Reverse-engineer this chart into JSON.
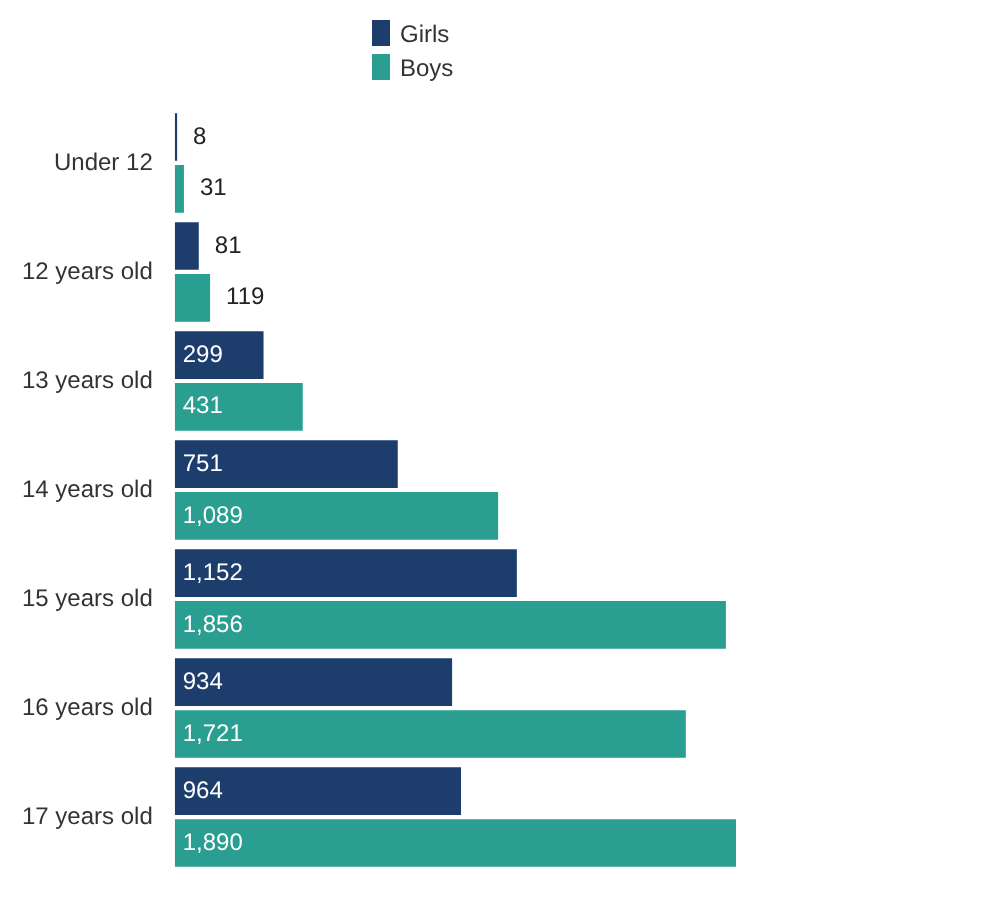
{
  "chart_data": {
    "type": "bar",
    "orientation": "horizontal",
    "categories": [
      "Under 12",
      "12 years old",
      "13 years old",
      "14 years old",
      "15 years old",
      "16 years old",
      "17 years old"
    ],
    "series": [
      {
        "name": "Girls",
        "color": "#1d3e6c",
        "values": [
          8,
          81,
          299,
          751,
          1152,
          934,
          964
        ],
        "value_labels": [
          "8",
          "81",
          "299",
          "751",
          "1,152",
          "934",
          "964"
        ]
      },
      {
        "name": "Boys",
        "color": "#2a9e90",
        "values": [
          31,
          119,
          431,
          1089,
          1856,
          1721,
          1890
        ],
        "value_labels": [
          "31",
          "119",
          "431",
          "1,089",
          "1,856",
          "1,721",
          "1,890"
        ]
      }
    ],
    "legend": "top left",
    "grid": false,
    "tick_labels": "y"
  }
}
